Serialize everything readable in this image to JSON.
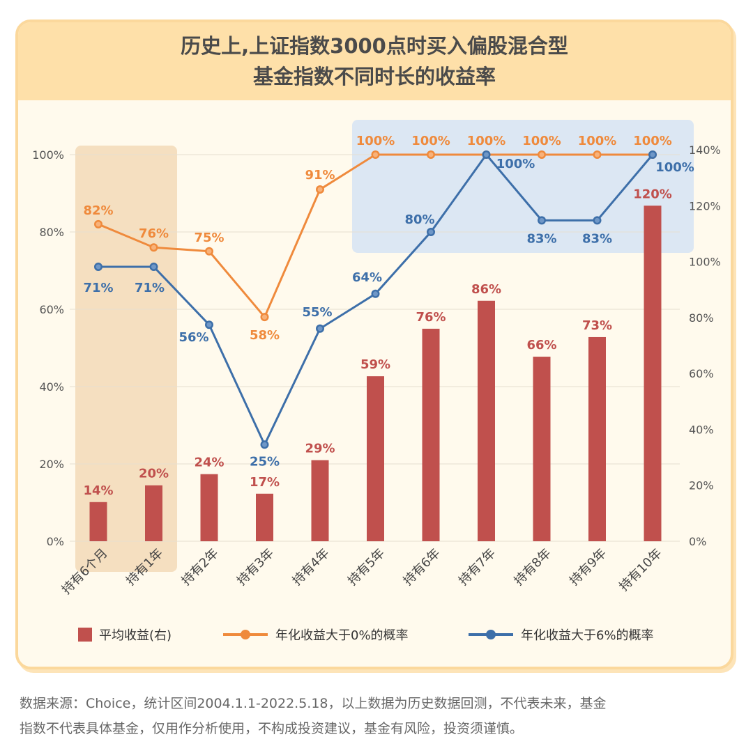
{
  "title_lines": [
    "历史上,上证指数3000点时买入偏股混合型",
    "基金指数不同时长的收益率"
  ],
  "footer_lines": [
    "数据来源：Choice，统计区间2004.1.1-2022.5.18，以上数据为历史数据回测，不代表未来，基金",
    "指数不代表具体基金，仅用作分析使用，不构成投资建议，基金有风险，投资须谨慎。"
  ],
  "chart_data": {
    "type": "bar+line",
    "categories": [
      "持有6个月",
      "持有1年",
      "持有2年",
      "持有3年",
      "持有4年",
      "持有5年",
      "持有6年",
      "持有7年",
      "持有8年",
      "持有9年",
      "持有10年"
    ],
    "left_axis": {
      "ylim": [
        0,
        100
      ],
      "ticks": [
        "0%",
        "20%",
        "40%",
        "60%",
        "80%",
        "100%"
      ]
    },
    "right_axis": {
      "ylim": [
        0,
        140
      ],
      "ticks": [
        "0%",
        "20%",
        "40%",
        "60%",
        "80%",
        "100%",
        "120%",
        "140%"
      ]
    },
    "series": [
      {
        "name": "平均收益(右)",
        "type": "bar",
        "axis": "right",
        "color": "#c0504d",
        "values": [
          14,
          20,
          24,
          17,
          29,
          59,
          76,
          86,
          66,
          73,
          120
        ]
      },
      {
        "name": "年化收益大于0%的概率",
        "type": "line",
        "axis": "left",
        "color": "#ef8a3c",
        "values": [
          82,
          76,
          75,
          58,
          91,
          100,
          100,
          100,
          100,
          100,
          100
        ]
      },
      {
        "name": "年化收益大于6%的概率",
        "type": "line",
        "axis": "left",
        "color": "#3d6fa9",
        "values": [
          71,
          71,
          56,
          25,
          55,
          64,
          80,
          100,
          83,
          83,
          100
        ]
      }
    ],
    "grid": true,
    "legend": "bottom",
    "highlights": [
      {
        "color": "#f5dfc0"
      },
      {
        "color": "#dce7f3"
      }
    ]
  }
}
